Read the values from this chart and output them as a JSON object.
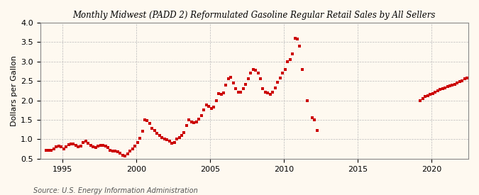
{
  "title": "Monthly Midwest (PADD 2) Reformulated Gasoline Regular Retail Sales by All Sellers",
  "ylabel": "Dollars per Gallon",
  "source": "Source: U.S. Energy Information Administration",
  "background_color": "#fef9f0",
  "marker_color": "#cc0000",
  "xlim": [
    1993.5,
    2022.5
  ],
  "ylim": [
    0.5,
    4.0
  ],
  "yticks": [
    0.5,
    1.0,
    1.5,
    2.0,
    2.5,
    3.0,
    3.5,
    4.0
  ],
  "xticks": [
    1995,
    2000,
    2005,
    2010,
    2015,
    2020
  ],
  "data": [
    [
      1993.917,
      0.72
    ],
    [
      1994.083,
      0.71
    ],
    [
      1994.25,
      0.72
    ],
    [
      1994.417,
      0.75
    ],
    [
      1994.583,
      0.8
    ],
    [
      1994.75,
      0.82
    ],
    [
      1994.917,
      0.8
    ],
    [
      1995.083,
      0.76
    ],
    [
      1995.25,
      0.8
    ],
    [
      1995.417,
      0.86
    ],
    [
      1995.583,
      0.88
    ],
    [
      1995.75,
      0.87
    ],
    [
      1995.917,
      0.84
    ],
    [
      1996.083,
      0.8
    ],
    [
      1996.25,
      0.82
    ],
    [
      1996.417,
      0.92
    ],
    [
      1996.583,
      0.95
    ],
    [
      1996.75,
      0.9
    ],
    [
      1996.917,
      0.84
    ],
    [
      1997.083,
      0.8
    ],
    [
      1997.25,
      0.79
    ],
    [
      1997.417,
      0.82
    ],
    [
      1997.583,
      0.84
    ],
    [
      1997.75,
      0.85
    ],
    [
      1997.917,
      0.82
    ],
    [
      1998.083,
      0.78
    ],
    [
      1998.25,
      0.72
    ],
    [
      1998.417,
      0.7
    ],
    [
      1998.583,
      0.7
    ],
    [
      1998.75,
      0.68
    ],
    [
      1998.917,
      0.64
    ],
    [
      1999.083,
      0.58
    ],
    [
      1999.25,
      0.57
    ],
    [
      1999.417,
      0.62
    ],
    [
      1999.583,
      0.7
    ],
    [
      1999.75,
      0.76
    ],
    [
      1999.917,
      0.82
    ],
    [
      2000.083,
      0.92
    ],
    [
      2000.25,
      1.02
    ],
    [
      2000.417,
      1.2
    ],
    [
      2000.583,
      1.5
    ],
    [
      2000.75,
      1.48
    ],
    [
      2000.917,
      1.4
    ],
    [
      2001.083,
      1.28
    ],
    [
      2001.25,
      1.22
    ],
    [
      2001.417,
      1.15
    ],
    [
      2001.583,
      1.1
    ],
    [
      2001.75,
      1.05
    ],
    [
      2001.917,
      1.0
    ],
    [
      2002.083,
      0.98
    ],
    [
      2002.25,
      0.95
    ],
    [
      2002.417,
      0.9
    ],
    [
      2002.583,
      0.92
    ],
    [
      2002.75,
      1.0
    ],
    [
      2002.917,
      1.05
    ],
    [
      2003.083,
      1.1
    ],
    [
      2003.25,
      1.18
    ],
    [
      2003.417,
      1.35
    ],
    [
      2003.583,
      1.5
    ],
    [
      2003.75,
      1.45
    ],
    [
      2003.917,
      1.42
    ],
    [
      2004.083,
      1.45
    ],
    [
      2004.25,
      1.52
    ],
    [
      2004.417,
      1.6
    ],
    [
      2004.583,
      1.75
    ],
    [
      2004.75,
      1.88
    ],
    [
      2004.917,
      1.85
    ],
    [
      2005.083,
      1.8
    ],
    [
      2005.25,
      1.82
    ],
    [
      2005.417,
      2.0
    ],
    [
      2005.583,
      2.18
    ],
    [
      2005.75,
      2.15
    ],
    [
      2005.917,
      2.2
    ],
    [
      2006.083,
      2.4
    ],
    [
      2006.25,
      2.55
    ],
    [
      2006.417,
      2.6
    ],
    [
      2006.583,
      2.45
    ],
    [
      2006.75,
      2.3
    ],
    [
      2006.917,
      2.22
    ],
    [
      2007.083,
      2.22
    ],
    [
      2007.25,
      2.3
    ],
    [
      2007.417,
      2.42
    ],
    [
      2007.583,
      2.55
    ],
    [
      2007.75,
      2.7
    ],
    [
      2007.917,
      2.8
    ],
    [
      2008.083,
      2.78
    ],
    [
      2008.25,
      2.7
    ],
    [
      2008.417,
      2.55
    ],
    [
      2008.583,
      2.3
    ],
    [
      2008.75,
      2.22
    ],
    [
      2008.917,
      2.2
    ],
    [
      2009.083,
      2.15
    ],
    [
      2009.25,
      2.22
    ],
    [
      2009.417,
      2.32
    ],
    [
      2009.583,
      2.46
    ],
    [
      2009.75,
      2.58
    ],
    [
      2009.917,
      2.7
    ],
    [
      2010.083,
      2.8
    ],
    [
      2010.25,
      3.0
    ],
    [
      2010.417,
      3.05
    ],
    [
      2010.583,
      3.2
    ],
    [
      2010.75,
      3.6
    ],
    [
      2010.917,
      3.58
    ],
    [
      2011.083,
      3.4
    ],
    [
      2011.25,
      2.8
    ],
    [
      2011.583,
      2.0
    ],
    [
      2011.917,
      1.55
    ],
    [
      2012.083,
      1.5
    ],
    [
      2012.25,
      1.22
    ],
    [
      2019.25,
      2.0
    ],
    [
      2019.417,
      2.05
    ],
    [
      2019.583,
      2.1
    ],
    [
      2019.75,
      2.12
    ],
    [
      2019.917,
      2.15
    ],
    [
      2020.083,
      2.18
    ],
    [
      2020.25,
      2.22
    ],
    [
      2020.417,
      2.25
    ],
    [
      2020.583,
      2.28
    ],
    [
      2020.75,
      2.3
    ],
    [
      2020.917,
      2.32
    ],
    [
      2021.083,
      2.35
    ],
    [
      2021.25,
      2.38
    ],
    [
      2021.417,
      2.4
    ],
    [
      2021.583,
      2.42
    ],
    [
      2021.75,
      2.45
    ],
    [
      2021.917,
      2.48
    ],
    [
      2022.083,
      2.5
    ],
    [
      2022.25,
      2.55
    ],
    [
      2022.417,
      2.58
    ]
  ]
}
